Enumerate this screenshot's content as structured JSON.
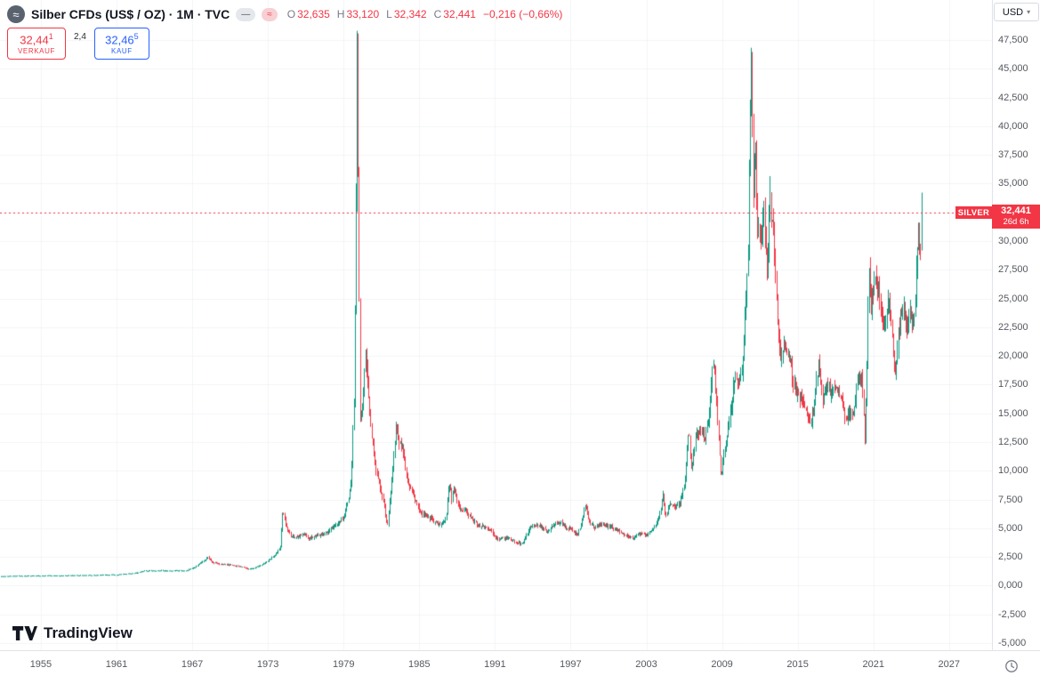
{
  "header": {
    "title": "Silber CFDs (US$ / OZ) · 1M · TVC",
    "ohlc": {
      "o_label": "O",
      "o_value": "32,635",
      "h_label": "H",
      "h_value": "33,120",
      "l_label": "L",
      "l_value": "32,342",
      "c_label": "C",
      "c_value": "32,441",
      "change": "−0,216 (−0,66%)"
    }
  },
  "icons": {
    "logo_wave": "≈",
    "minus": "—",
    "wave": "≈",
    "chevron_down": "▾"
  },
  "trade_panel": {
    "sell_value": "32,44",
    "sell_sup": "1",
    "sell_label": "VERKAUF",
    "spread": "2,4",
    "buy_value": "32,46",
    "buy_sup": "5",
    "buy_label": "KAUF"
  },
  "price_tag": {
    "symbol": "SILVER",
    "price": "32,441",
    "countdown": "26d 6h"
  },
  "price_axis": {
    "currency": "USD",
    "tick_labels": [
      "47,500",
      "45,000",
      "42,500",
      "40,000",
      "37,500",
      "35,000",
      "32,500",
      "30,000",
      "27,500",
      "25,000",
      "22,500",
      "20,000",
      "17,500",
      "15,000",
      "12,500",
      "10,000",
      "7,500",
      "5,000",
      "2,500",
      "0,000",
      "-2,500",
      "-5,000"
    ]
  },
  "time_axis": {
    "labels": [
      "1955",
      "1961",
      "1967",
      "1973",
      "1979",
      "1985",
      "1991",
      "1997",
      "2003",
      "2009",
      "2015",
      "2021",
      "2027"
    ]
  },
  "brand": {
    "name": "TradingView"
  },
  "chart_data": {
    "type": "candlestick",
    "title": "Silber CFDs (US$ / OZ) · 1M · TVC",
    "symbol": "SILVER",
    "interval": "1M",
    "exchange": "TVC",
    "currency": "USD",
    "scale": "linear",
    "current": {
      "open": 32.635,
      "high": 33.12,
      "low": 32.342,
      "close": 32.441,
      "change": -0.216,
      "change_pct": -0.66
    },
    "current_price": 32.441,
    "x_domain": [
      1951.76,
      2030.4
    ],
    "y_top_value": 50.98,
    "y_bottom_value": -5.62,
    "x_ticks": [
      1955,
      1961,
      1967,
      1973,
      1979,
      1985,
      1991,
      1997,
      2003,
      2009,
      2015,
      2021,
      2027
    ],
    "y_ticks": [
      47.5,
      45,
      42.5,
      40,
      37.5,
      35,
      32.5,
      30,
      27.5,
      25,
      22.5,
      20,
      17.5,
      15,
      12.5,
      10,
      7.5,
      5,
      2.5,
      0,
      -2.5,
      -5
    ],
    "colors": {
      "up": "#089981",
      "down": "#f23645",
      "grid": "#f2f4f7",
      "price_line": "#f23645"
    },
    "flat_teal_until": 1967.0,
    "close_noise": 0.05,
    "wick_noise": 0.045,
    "anchors": [
      [
        1951.8,
        0.8
      ],
      [
        1953,
        0.83
      ],
      [
        1955,
        0.85
      ],
      [
        1957,
        0.88
      ],
      [
        1959,
        0.9
      ],
      [
        1961,
        0.95
      ],
      [
        1962.5,
        1.1
      ],
      [
        1963.2,
        1.28
      ],
      [
        1964,
        1.29
      ],
      [
        1965.5,
        1.29
      ],
      [
        1966.5,
        1.3
      ],
      [
        1967.2,
        1.6
      ],
      [
        1967.8,
        2.1
      ],
      [
        1968.2,
        2.45
      ],
      [
        1968.6,
        2.0
      ],
      [
        1969.2,
        1.85
      ],
      [
        1970,
        1.8
      ],
      [
        1970.9,
        1.64
      ],
      [
        1971.5,
        1.4
      ],
      [
        1972,
        1.6
      ],
      [
        1972.6,
        1.85
      ],
      [
        1973.1,
        2.25
      ],
      [
        1973.6,
        2.7
      ],
      [
        1973.95,
        3.2
      ],
      [
        1974.15,
        6.4
      ],
      [
        1974.45,
        5.1
      ],
      [
        1974.8,
        4.3
      ],
      [
        1975.3,
        4.2
      ],
      [
        1975.8,
        4.45
      ],
      [
        1976.3,
        4.1
      ],
      [
        1976.9,
        4.35
      ],
      [
        1977.4,
        4.45
      ],
      [
        1978,
        4.95
      ],
      [
        1978.5,
        5.3
      ],
      [
        1979,
        6.0
      ],
      [
        1979.35,
        7.5
      ],
      [
        1979.6,
        9.5
      ],
      [
        1979.8,
        16.5
      ],
      [
        1979.95,
        30.0
      ],
      [
        1980.04,
        47.5
      ],
      [
        1980.15,
        34.0
      ],
      [
        1980.3,
        14.5
      ],
      [
        1980.5,
        15.5
      ],
      [
        1980.7,
        20.5
      ],
      [
        1980.9,
        17.5
      ],
      [
        1981.2,
        13.0
      ],
      [
        1981.6,
        9.8
      ],
      [
        1981.95,
        8.3
      ],
      [
        1982.2,
        7.0
      ],
      [
        1982.45,
        5.1
      ],
      [
        1982.7,
        8.2
      ],
      [
        1982.95,
        10.8
      ],
      [
        1983.1,
        13.9
      ],
      [
        1983.4,
        12.3
      ],
      [
        1983.7,
        11.5
      ],
      [
        1984.1,
        9.0
      ],
      [
        1984.6,
        7.6
      ],
      [
        1985.1,
        6.2
      ],
      [
        1985.6,
        6.1
      ],
      [
        1986.1,
        5.6
      ],
      [
        1986.6,
        5.3
      ],
      [
        1987.1,
        5.8
      ],
      [
        1987.35,
        9.2
      ],
      [
        1987.55,
        7.5
      ],
      [
        1987.75,
        8.6
      ],
      [
        1988.1,
        6.7
      ],
      [
        1988.6,
        6.5
      ],
      [
        1989.1,
        5.9
      ],
      [
        1989.6,
        5.3
      ],
      [
        1990.1,
        5.1
      ],
      [
        1990.6,
        4.85
      ],
      [
        1991.1,
        4.05
      ],
      [
        1991.6,
        4.1
      ],
      [
        1992.1,
        4.1
      ],
      [
        1992.6,
        3.85
      ],
      [
        1993.1,
        3.6
      ],
      [
        1993.45,
        4.4
      ],
      [
        1993.75,
        5.05
      ],
      [
        1994.1,
        5.3
      ],
      [
        1994.6,
        5.2
      ],
      [
        1995.1,
        4.7
      ],
      [
        1995.6,
        5.3
      ],
      [
        1996.1,
        5.5
      ],
      [
        1996.6,
        5.1
      ],
      [
        1997.1,
        4.8
      ],
      [
        1997.55,
        4.4
      ],
      [
        1997.95,
        5.95
      ],
      [
        1998.15,
        6.9
      ],
      [
        1998.5,
        5.45
      ],
      [
        1998.9,
        5.0
      ],
      [
        1999.25,
        5.4
      ],
      [
        1999.7,
        5.2
      ],
      [
        2000.1,
        5.1
      ],
      [
        2000.6,
        4.95
      ],
      [
        2001.1,
        4.55
      ],
      [
        2001.6,
        4.25
      ],
      [
        2001.9,
        4.1
      ],
      [
        2002.35,
        4.6
      ],
      [
        2002.8,
        4.45
      ],
      [
        2003.25,
        4.55
      ],
      [
        2003.7,
        5.1
      ],
      [
        2004.05,
        6.3
      ],
      [
        2004.3,
        7.9
      ],
      [
        2004.5,
        5.9
      ],
      [
        2004.85,
        7.2
      ],
      [
        2005.2,
        6.9
      ],
      [
        2005.6,
        7.1
      ],
      [
        2006,
        8.8
      ],
      [
        2006.35,
        13.7
      ],
      [
        2006.55,
        10.1
      ],
      [
        2006.95,
        13.2
      ],
      [
        2007.3,
        13.4
      ],
      [
        2007.65,
        12.8
      ],
      [
        2008,
        15.0
      ],
      [
        2008.25,
        19.5
      ],
      [
        2008.5,
        17.0
      ],
      [
        2008.7,
        13.0
      ],
      [
        2008.9,
        9.5
      ],
      [
        2009.15,
        11.8
      ],
      [
        2009.55,
        14.2
      ],
      [
        2009.95,
        17.8
      ],
      [
        2010.3,
        17.6
      ],
      [
        2010.6,
        18.8
      ],
      [
        2010.85,
        24.5
      ],
      [
        2011.05,
        29.5
      ],
      [
        2011.28,
        46.5
      ],
      [
        2011.45,
        34.5
      ],
      [
        2011.62,
        39.5
      ],
      [
        2011.78,
        31.0
      ],
      [
        2012.05,
        30.0
      ],
      [
        2012.25,
        33.0
      ],
      [
        2012.55,
        27.5
      ],
      [
        2012.8,
        33.5
      ],
      [
        2013.1,
        29.8
      ],
      [
        2013.35,
        23.2
      ],
      [
        2013.6,
        19.6
      ],
      [
        2013.9,
        20.7
      ],
      [
        2014.3,
        19.8
      ],
      [
        2014.75,
        17.2
      ],
      [
        2015.1,
        16.5
      ],
      [
        2015.45,
        16.2
      ],
      [
        2015.95,
        13.9
      ],
      [
        2016.35,
        16.4
      ],
      [
        2016.65,
        19.8
      ],
      [
        2016.95,
        16.3
      ],
      [
        2017.3,
        17.3
      ],
      [
        2017.65,
        16.8
      ],
      [
        2018.05,
        17.2
      ],
      [
        2018.45,
        16.3
      ],
      [
        2018.8,
        14.3
      ],
      [
        2019.15,
        15.2
      ],
      [
        2019.5,
        15.3
      ],
      [
        2019.75,
        18.5
      ],
      [
        2020.05,
        18.0
      ],
      [
        2020.22,
        14.7
      ],
      [
        2020.3,
        12.6
      ],
      [
        2020.45,
        18.3
      ],
      [
        2020.62,
        28.3
      ],
      [
        2020.8,
        24.2
      ],
      [
        2021.1,
        27.0
      ],
      [
        2021.35,
        25.9
      ],
      [
        2021.7,
        23.2
      ],
      [
        2021.95,
        23.3
      ],
      [
        2022.2,
        25.0
      ],
      [
        2022.5,
        21.0
      ],
      [
        2022.68,
        18.2
      ],
      [
        2022.95,
        21.8
      ],
      [
        2023.15,
        23.6
      ],
      [
        2023.4,
        24.0
      ],
      [
        2023.65,
        22.5
      ],
      [
        2023.9,
        24.0
      ],
      [
        2024.1,
        22.7
      ],
      [
        2024.3,
        25.0
      ],
      [
        2024.42,
        29.5
      ],
      [
        2024.55,
        30.5
      ],
      [
        2024.65,
        29.0
      ],
      [
        2024.72,
        29.5
      ],
      [
        2024.8,
        33.8
      ],
      [
        2024.87,
        32.44
      ]
    ]
  }
}
